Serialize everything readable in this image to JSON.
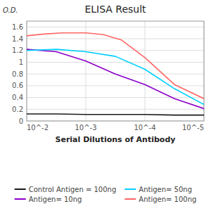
{
  "chart_data": {
    "type": "line",
    "title": "ELISA Result",
    "y_label": "O.D.",
    "x_label": "Serial Dilutions of Antibody",
    "series": [
      {
        "name": "Control Antigen = 100ng",
        "color": "#1a1a1a",
        "x": [
          -2,
          -2.5,
          -3,
          -3.5,
          -4,
          -4.5,
          -5
        ],
        "values": [
          0.12,
          0.12,
          0.11,
          0.11,
          0.11,
          0.1,
          0.1
        ]
      },
      {
        "name": "Antigen= 10ng",
        "color": "#8B00C8",
        "x": [
          -2,
          -2.5,
          -3,
          -3.5,
          -4,
          -4.5,
          -5
        ],
        "values": [
          1.22,
          1.18,
          1.02,
          0.8,
          0.62,
          0.38,
          0.21
        ]
      },
      {
        "name": "Antigen= 50ng",
        "color": "#00CFFF",
        "x": [
          -2,
          -2.5,
          -3,
          -3.5,
          -4,
          -4.5,
          -5
        ],
        "values": [
          1.2,
          1.22,
          1.18,
          1.1,
          0.88,
          0.55,
          0.28
        ]
      },
      {
        "name": "Antigen= 100ng",
        "color": "#FF6666",
        "x": [
          -2,
          -2.3,
          -2.6,
          -3,
          -3.3,
          -3.6,
          -4,
          -4.5,
          -5
        ],
        "values": [
          1.45,
          1.48,
          1.5,
          1.5,
          1.47,
          1.38,
          1.08,
          0.62,
          0.38
        ]
      }
    ],
    "xlim": [
      -2,
      -5
    ],
    "xticks": [
      {
        "value": -2,
        "label": "10^-2"
      },
      {
        "value": -3,
        "label": "10^-3"
      },
      {
        "value": -4,
        "label": "10^-4"
      },
      {
        "value": -5,
        "label": "10^-5"
      }
    ],
    "ylim": [
      0,
      1.7
    ],
    "yticks": [
      0,
      0.2,
      0.4,
      0.6,
      0.8,
      1,
      1.2,
      1.4,
      1.6
    ],
    "grid": true,
    "legend": "bottom"
  }
}
